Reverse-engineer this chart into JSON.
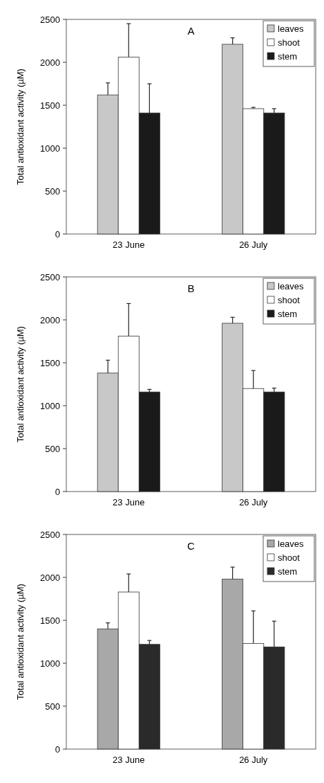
{
  "chart_data": [
    {
      "type": "bar",
      "title": "A",
      "ylabel": "Total antioxidant activity (µM)",
      "categories": [
        "23 June",
        "26 July"
      ],
      "ylim": [
        0,
        2500
      ],
      "yticks": [
        0,
        500,
        1000,
        1500,
        2000,
        2500
      ],
      "legend": "top right",
      "grid": false,
      "series": [
        {
          "name": "leaves",
          "color": "#c8c8c8",
          "values": [
            1620,
            2210
          ],
          "errors": [
            140,
            75
          ]
        },
        {
          "name": "shoot",
          "color": "#ffffff",
          "values": [
            2060,
            1460
          ],
          "errors": [
            390,
            15
          ]
        },
        {
          "name": "stem",
          "color": "#1a1a1a",
          "values": [
            1410,
            1410
          ],
          "errors": [
            340,
            50
          ]
        }
      ]
    },
    {
      "type": "bar",
      "title": "B",
      "ylabel": "Total antioxidant activity (µM)",
      "categories": [
        "23 June",
        "26 July"
      ],
      "ylim": [
        0,
        2500
      ],
      "yticks": [
        0,
        500,
        1000,
        1500,
        2000,
        2500
      ],
      "legend": "top right",
      "grid": false,
      "series": [
        {
          "name": "leaves",
          "color": "#c8c8c8",
          "values": [
            1380,
            1960
          ],
          "errors": [
            150,
            70
          ]
        },
        {
          "name": "shoot",
          "color": "#ffffff",
          "values": [
            1810,
            1200
          ],
          "errors": [
            380,
            210
          ]
        },
        {
          "name": "stem",
          "color": "#1a1a1a",
          "values": [
            1160,
            1160
          ],
          "errors": [
            30,
            45
          ]
        }
      ]
    },
    {
      "type": "bar",
      "title": "C",
      "ylabel": "Total antioxidant activity (µM)",
      "categories": [
        "23 June",
        "26 July"
      ],
      "ylim": [
        0,
        2500
      ],
      "yticks": [
        0,
        500,
        1000,
        1500,
        2000,
        2500
      ],
      "legend": "top right",
      "grid": false,
      "series": [
        {
          "name": "leaves",
          "color": "#a8a8a8",
          "values": [
            1400,
            1980
          ],
          "errors": [
            70,
            140
          ]
        },
        {
          "name": "shoot",
          "color": "#ffffff",
          "values": [
            1830,
            1230
          ],
          "errors": [
            210,
            380
          ]
        },
        {
          "name": "stem",
          "color": "#2a2a2a",
          "values": [
            1220,
            1190
          ],
          "errors": [
            45,
            300
          ]
        }
      ]
    }
  ]
}
